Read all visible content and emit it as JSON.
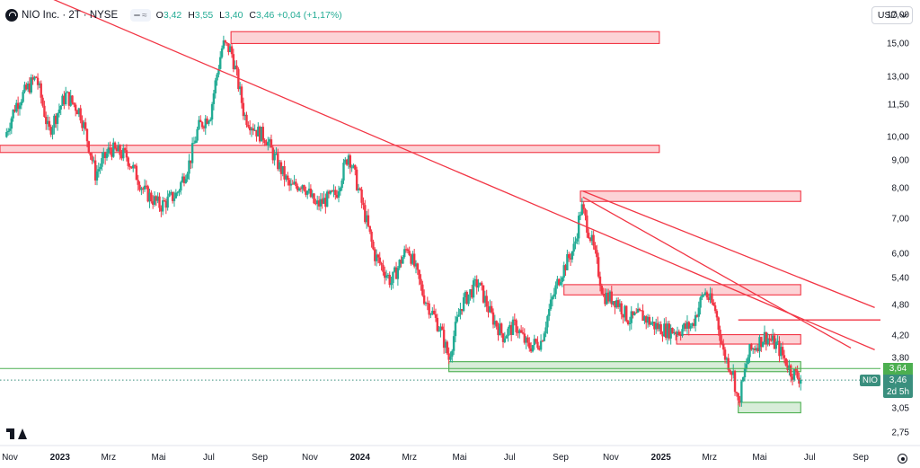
{
  "header": {
    "title": "NIO Inc. · 2T · NYSE",
    "ohlc": [
      {
        "k": "O",
        "v": "3,42"
      },
      {
        "k": "H",
        "v": "3,55"
      },
      {
        "k": "L",
        "v": "3,40"
      },
      {
        "k": "C",
        "v": "3,46"
      },
      {
        "k": "",
        "v": "+0,04 (+1,17%)"
      }
    ],
    "chip_glyph": "≈"
  },
  "currency": "USD",
  "price_axis": [
    "17,00",
    "15,00",
    "13,00",
    "11,50",
    "10,00",
    "9,00",
    "8,00",
    "7,00",
    "6,00",
    "5,40",
    "4,80",
    "4,20",
    "3,80",
    "3,05",
    "2,75"
  ],
  "time_axis": [
    {
      "label": "Nov",
      "bold": false
    },
    {
      "label": "2023",
      "bold": true
    },
    {
      "label": "Mrz",
      "bold": false
    },
    {
      "label": "Mai",
      "bold": false
    },
    {
      "label": "Jul",
      "bold": false
    },
    {
      "label": "Sep",
      "bold": false
    },
    {
      "label": "Nov",
      "bold": false
    },
    {
      "label": "2024",
      "bold": true
    },
    {
      "label": "Mrz",
      "bold": false
    },
    {
      "label": "Mai",
      "bold": false
    },
    {
      "label": "Jul",
      "bold": false
    },
    {
      "label": "Sep",
      "bold": false
    },
    {
      "label": "Nov",
      "bold": false
    },
    {
      "label": "2025",
      "bold": true
    },
    {
      "label": "Mrz",
      "bold": false
    },
    {
      "label": "Mai",
      "bold": false
    },
    {
      "label": "Jul",
      "bold": false
    },
    {
      "label": "Sep",
      "bold": false
    }
  ],
  "tags": {
    "symbol": "NIO",
    "high_line": "3,64",
    "last_price": "3,46",
    "countdown": "2d 5h"
  },
  "colors": {
    "up": "#22ab94",
    "down": "#f23645",
    "resistance": "#f23645",
    "support": "#4caf50"
  },
  "chart_data": {
    "type": "candlestick",
    "symbol": "NIO Inc.",
    "interval": "2T",
    "exchange": "NYSE",
    "scale": "log",
    "ylim": [
      2.6,
      18.2
    ],
    "x_range": [
      "2022-10-20",
      "2025-09-25"
    ],
    "price_path": [
      [
        "2022-10-28",
        10.0
      ],
      [
        "2022-11-10",
        11.5
      ],
      [
        "2022-12-05",
        13.0
      ],
      [
        "2022-12-20",
        10.2
      ],
      [
        "2023-01-10",
        12.0
      ],
      [
        "2023-01-27",
        11.2
      ],
      [
        "2023-02-15",
        8.5
      ],
      [
        "2023-03-05",
        9.5
      ],
      [
        "2023-03-25",
        9.2
      ],
      [
        "2023-04-15",
        7.9
      ],
      [
        "2023-05-05",
        7.4
      ],
      [
        "2023-05-25",
        7.8
      ],
      [
        "2023-06-10",
        9.0
      ],
      [
        "2023-06-20",
        10.4
      ],
      [
        "2023-07-05",
        11.1
      ],
      [
        "2023-07-20",
        15.0
      ],
      [
        "2023-07-30",
        14.6
      ],
      [
        "2023-08-15",
        11.0
      ],
      [
        "2023-09-01",
        10.2
      ],
      [
        "2023-09-10",
        10.0
      ],
      [
        "2023-09-20",
        9.2
      ],
      [
        "2023-10-10",
        8.0
      ],
      [
        "2023-10-25",
        8.2
      ],
      [
        "2023-11-10",
        7.4
      ],
      [
        "2023-12-05",
        7.8
      ],
      [
        "2023-12-20",
        9.3
      ],
      [
        "2024-01-05",
        7.5
      ],
      [
        "2024-01-20",
        6.0
      ],
      [
        "2024-02-10",
        5.3
      ],
      [
        "2024-03-01",
        6.2
      ],
      [
        "2024-03-20",
        5.0
      ],
      [
        "2024-04-10",
        4.3
      ],
      [
        "2024-04-20",
        3.8
      ],
      [
        "2024-05-05",
        4.8
      ],
      [
        "2024-05-25",
        5.3
      ],
      [
        "2024-06-10",
        4.6
      ],
      [
        "2024-06-25",
        4.2
      ],
      [
        "2024-07-10",
        4.4
      ],
      [
        "2024-07-25",
        4.0
      ],
      [
        "2024-08-10",
        4.1
      ],
      [
        "2024-09-01",
        5.4
      ],
      [
        "2024-09-20",
        6.2
      ],
      [
        "2024-09-28",
        7.4
      ],
      [
        "2024-10-10",
        6.4
      ],
      [
        "2024-10-25",
        5.0
      ],
      [
        "2024-11-10",
        4.9
      ],
      [
        "2024-11-25",
        4.5
      ],
      [
        "2024-12-10",
        4.6
      ],
      [
        "2024-12-25",
        4.4
      ],
      [
        "2025-01-10",
        4.3
      ],
      [
        "2025-01-25",
        4.3
      ],
      [
        "2025-02-10",
        4.4
      ],
      [
        "2025-02-25",
        5.1
      ],
      [
        "2025-03-10",
        4.7
      ],
      [
        "2025-03-20",
        3.9
      ],
      [
        "2025-04-01",
        3.55
      ],
      [
        "2025-04-07",
        3.1
      ],
      [
        "2025-04-20",
        3.9
      ],
      [
        "2025-05-10",
        4.2
      ],
      [
        "2025-05-25",
        4.0
      ],
      [
        "2025-06-10",
        3.6
      ],
      [
        "2025-06-20",
        3.5
      ]
    ],
    "zones": [
      {
        "role": "resistance",
        "from": "2023-07-28",
        "to": "2024-12-30",
        "low": 15.05,
        "high": 15.85
      },
      {
        "role": "resistance",
        "from": "2022-10-20",
        "to": "2024-12-30",
        "low": 9.35,
        "high": 9.65
      },
      {
        "role": "resistance",
        "from": "2024-09-25",
        "to": "2025-06-20",
        "low": 7.55,
        "high": 7.9
      },
      {
        "role": "resistance",
        "from": "2024-09-05",
        "to": "2025-06-20",
        "low": 5.02,
        "high": 5.25
      },
      {
        "role": "resistance",
        "from": "2025-01-20",
        "to": "2025-06-20",
        "low": 4.05,
        "high": 4.22
      },
      {
        "role": "support",
        "from": "2024-04-18",
        "to": "2025-06-20",
        "low": 3.59,
        "high": 3.75
      },
      {
        "role": "support",
        "from": "2025-04-05",
        "to": "2025-06-20",
        "low": 3.0,
        "high": 3.14
      }
    ],
    "lines": [
      {
        "role": "resistance",
        "from": [
          "2022-12-15",
          18.5
        ],
        "to": [
          "2025-09-18",
          3.95
        ]
      },
      {
        "role": "resistance",
        "from": [
          "2024-09-28",
          7.9
        ],
        "to": [
          "2025-09-18",
          4.75
        ]
      },
      {
        "role": "resistance",
        "from": [
          "2024-09-28",
          7.7
        ],
        "to": [
          "2025-08-20",
          3.98
        ]
      },
      {
        "role": "resistance",
        "from": [
          "2025-04-05",
          4.5
        ],
        "to": [
          "2025-09-25",
          4.5
        ]
      },
      {
        "role": "support",
        "from": [
          "2022-10-20",
          3.64
        ],
        "to": [
          "2025-09-25",
          3.64
        ]
      }
    ],
    "last_price": 3.46
  }
}
